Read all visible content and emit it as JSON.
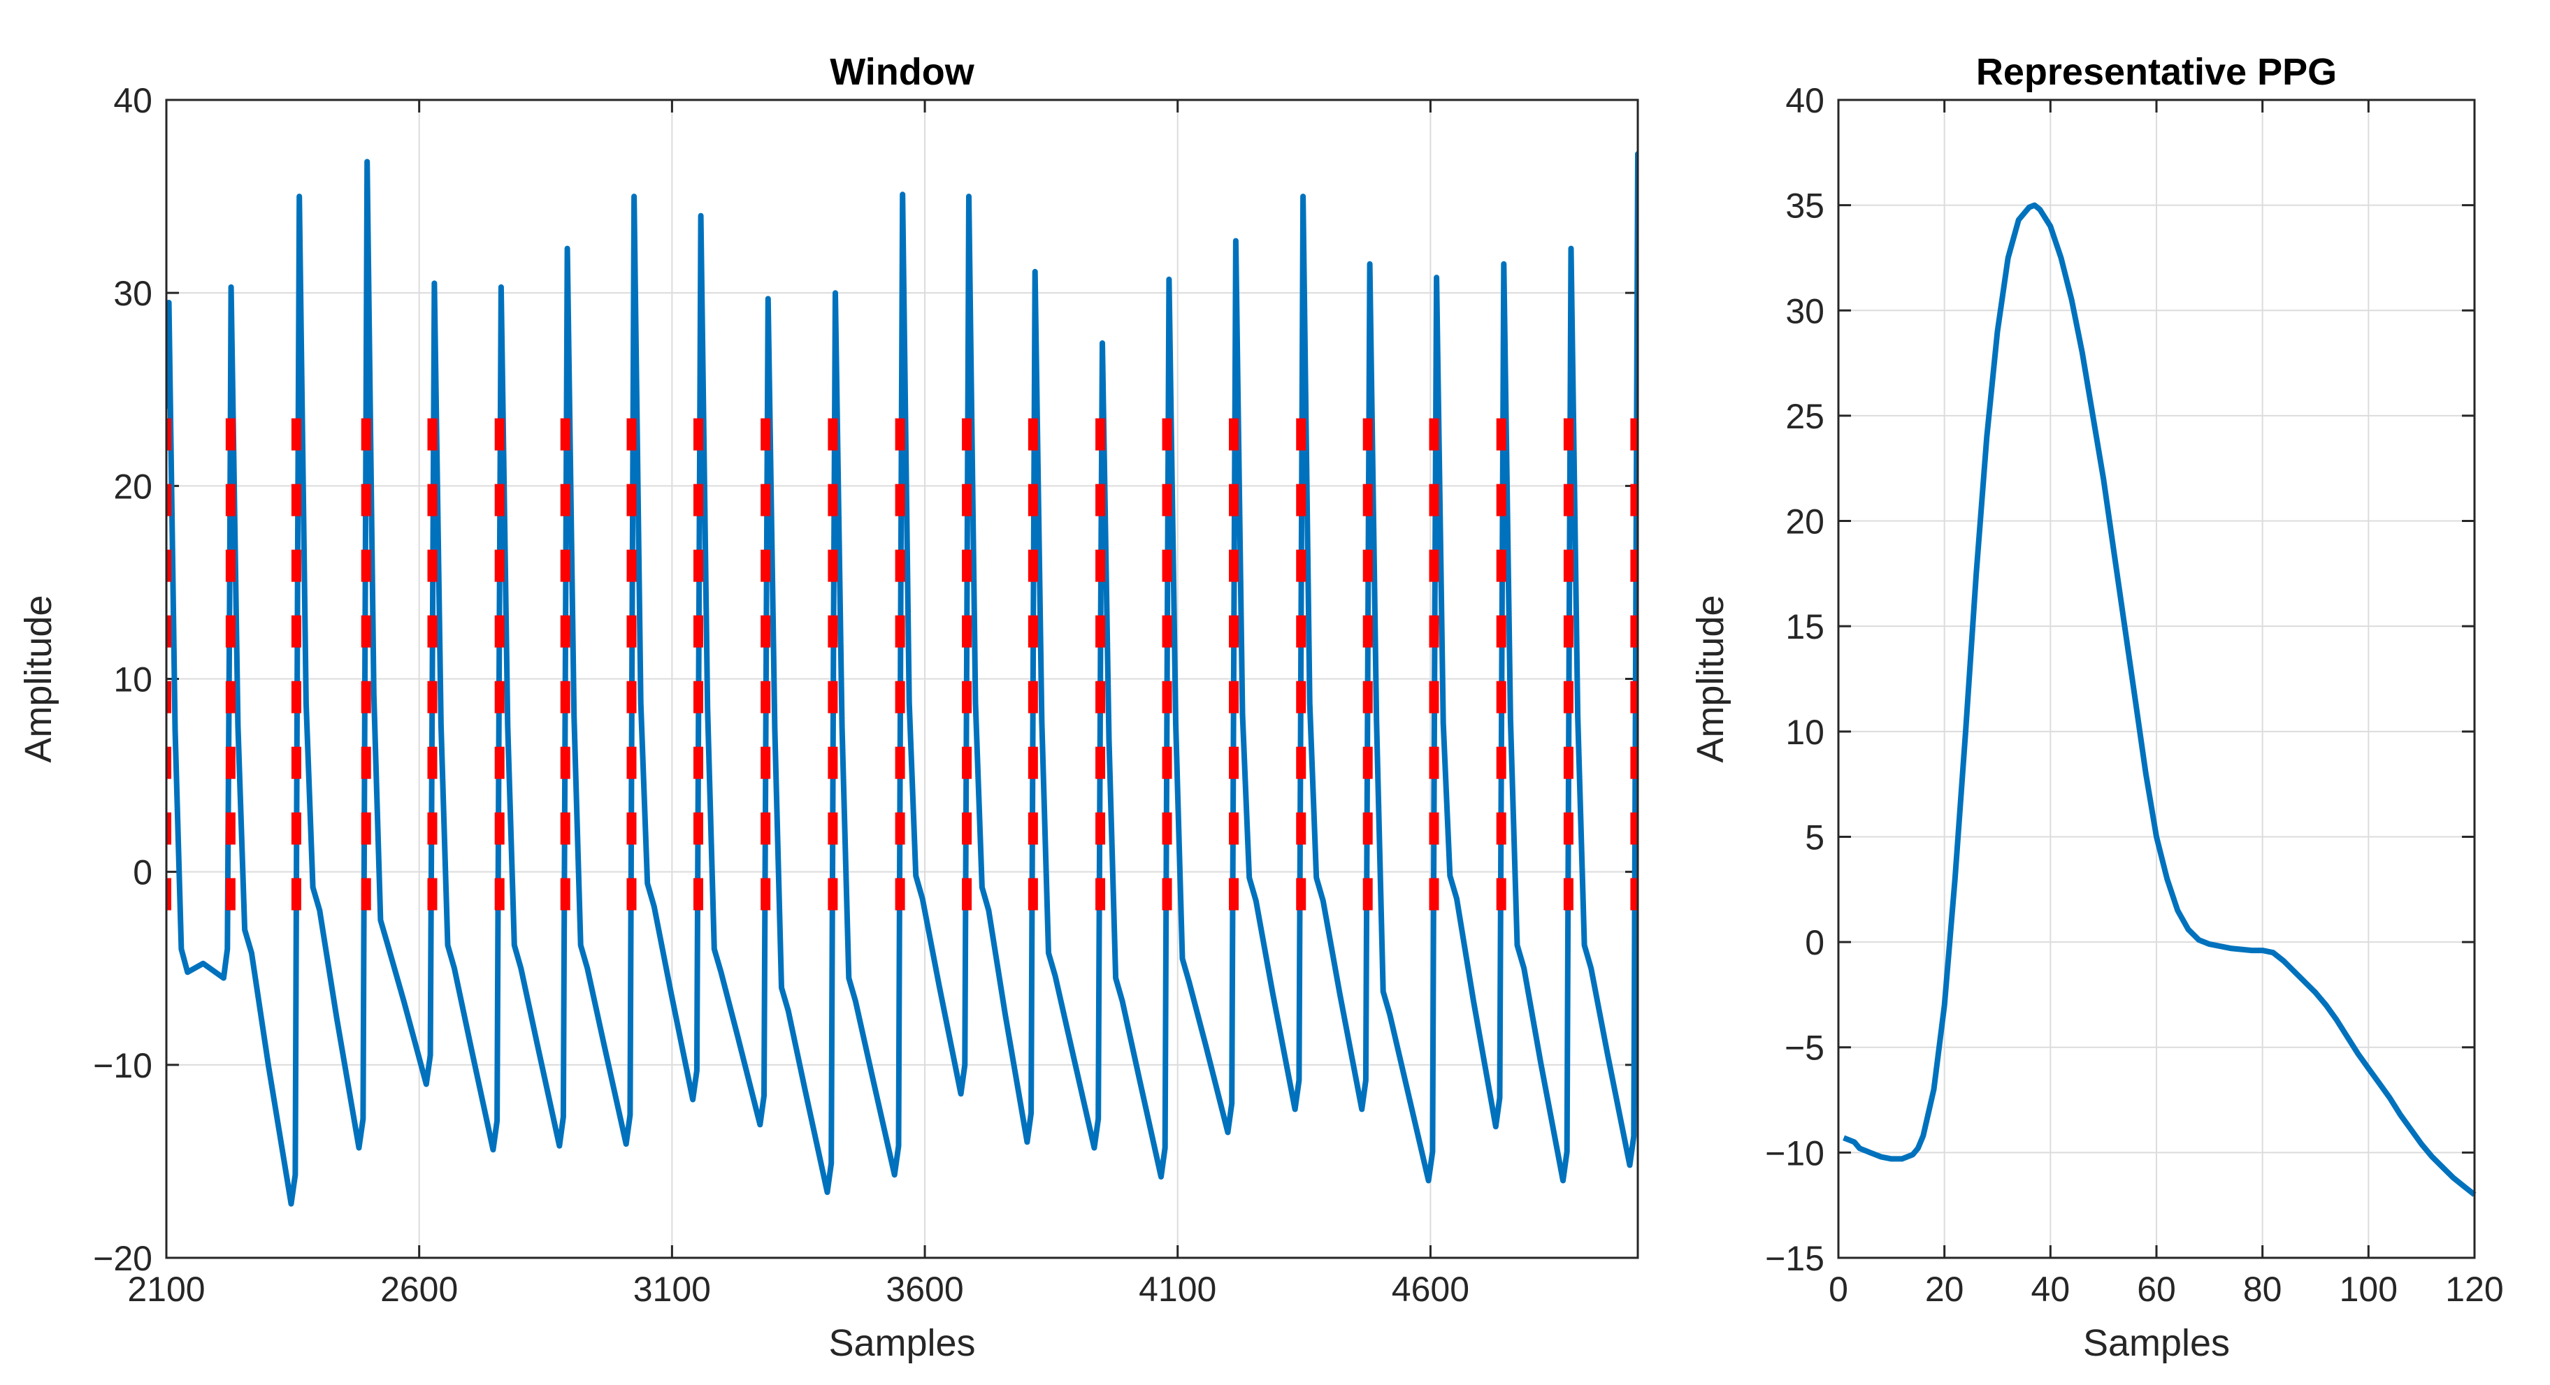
{
  "chart_data": [
    {
      "type": "line",
      "title": "Window",
      "xlabel": "Samples",
      "ylabel": "Amplitude",
      "xlim": [
        2100,
        5010
      ],
      "ylim": [
        -20,
        40
      ],
      "grid": true,
      "xticks": [
        2100,
        2600,
        3100,
        3600,
        4100,
        4600
      ],
      "yticks": [
        -20,
        -10,
        0,
        10,
        20,
        30,
        40
      ],
      "xtick_labels": [
        "2100",
        "2600",
        "3100",
        "3600",
        "4100",
        "4600"
      ],
      "ytick_labels": [
        "−20",
        "−10",
        "0",
        "10",
        "20",
        "30",
        "40"
      ],
      "series": [
        {
          "role": "signal",
          "color": "#0072BD",
          "beats": [
            {
              "x": 2105,
              "peak": 29.5,
              "valley": -5.5,
              "notch": -4.0
            },
            {
              "x": 2228,
              "peak": 30.3,
              "valley": -17.2,
              "notch": -3.0
            },
            {
              "x": 2363,
              "peak": 35.0,
              "valley": -14.3,
              "notch": -0.8
            },
            {
              "x": 2497,
              "peak": 36.8,
              "valley": -11.0,
              "notch": -2.5
            },
            {
              "x": 2630,
              "peak": 30.5,
              "valley": -14.4,
              "notch": -3.8
            },
            {
              "x": 2762,
              "peak": 30.3,
              "valley": -14.2,
              "notch": -3.8
            },
            {
              "x": 2893,
              "peak": 32.3,
              "valley": -14.1,
              "notch": -3.8
            },
            {
              "x": 3025,
              "peak": 35.0,
              "valley": -11.8,
              "notch": -0.6
            },
            {
              "x": 3157,
              "peak": 34.0,
              "valley": -13.1,
              "notch": -4.0
            },
            {
              "x": 3290,
              "peak": 29.7,
              "valley": -16.6,
              "notch": -6.0
            },
            {
              "x": 3423,
              "peak": 30.0,
              "valley": -15.7,
              "notch": -5.5
            },
            {
              "x": 3556,
              "peak": 35.1,
              "valley": -11.5,
              "notch": -0.2
            },
            {
              "x": 3687,
              "peak": 35.0,
              "valley": -14.0,
              "notch": -0.8
            },
            {
              "x": 3818,
              "peak": 31.1,
              "valley": -14.3,
              "notch": -4.2
            },
            {
              "x": 3951,
              "peak": 27.4,
              "valley": -15.8,
              "notch": -5.5
            },
            {
              "x": 4083,
              "peak": 30.7,
              "valley": -13.5,
              "notch": -4.5
            },
            {
              "x": 4215,
              "peak": 32.7,
              "valley": -12.3,
              "notch": -0.3
            },
            {
              "x": 4348,
              "peak": 35.0,
              "valley": -12.3,
              "notch": -0.3
            },
            {
              "x": 4480,
              "peak": 31.5,
              "valley": -16.0,
              "notch": -6.2
            },
            {
              "x": 4612,
              "peak": 30.8,
              "valley": -13.2,
              "notch": -0.2
            },
            {
              "x": 4745,
              "peak": 31.5,
              "valley": -16.0,
              "notch": -3.8
            },
            {
              "x": 4878,
              "peak": 32.3,
              "valley": -15.2,
              "notch": -3.8
            },
            {
              "x": 5010,
              "peak": 37.2,
              "valley": -14.8,
              "notch": 0.8
            }
          ]
        },
        {
          "role": "beat-onset-markers",
          "color": "#FF0000",
          "style": "dashed",
          "y_range": [
            -3.5,
            23.5
          ],
          "x": [
            2100,
            2227,
            2357,
            2495,
            2626,
            2759,
            2889,
            3020,
            3152,
            3285,
            3418,
            3551,
            3683,
            3814,
            3947,
            4079,
            4211,
            4344,
            4476,
            4607,
            4740,
            4873,
            5005
          ]
        }
      ]
    },
    {
      "type": "line",
      "title": "Representative PPG",
      "xlabel": "Samples",
      "ylabel": "Amplitude",
      "xlim": [
        0,
        120
      ],
      "ylim": [
        -15,
        40
      ],
      "grid": true,
      "xticks": [
        0,
        20,
        40,
        60,
        80,
        100,
        120
      ],
      "yticks": [
        -15,
        -10,
        -5,
        0,
        5,
        10,
        15,
        20,
        25,
        30,
        35,
        40
      ],
      "xtick_labels": [
        "0",
        "20",
        "40",
        "60",
        "80",
        "100",
        "120"
      ],
      "ytick_labels": [
        "−15",
        "−10",
        "−5",
        "0",
        "5",
        "10",
        "15",
        "20",
        "25",
        "30",
        "35",
        "40"
      ],
      "series": [
        {
          "role": "template",
          "color": "#0072BD",
          "x": [
            1,
            2,
            3,
            4,
            6,
            8,
            10,
            12,
            14,
            15,
            16,
            18,
            20,
            22,
            24,
            26,
            28,
            30,
            32,
            34,
            36,
            37,
            38,
            40,
            42,
            44,
            46,
            48,
            50,
            52,
            54,
            56,
            58,
            60,
            62,
            64,
            66,
            68,
            70,
            72,
            74,
            76,
            78,
            80,
            82,
            84,
            86,
            88,
            90,
            92,
            94,
            96,
            98,
            100,
            102,
            104,
            106,
            108,
            110,
            112,
            114,
            116,
            118,
            120
          ],
          "y": [
            -9.3,
            -9.4,
            -9.5,
            -9.8,
            -10.0,
            -10.2,
            -10.3,
            -10.3,
            -10.1,
            -9.8,
            -9.2,
            -7.0,
            -3.0,
            3.0,
            10.0,
            17.5,
            24.0,
            29.0,
            32.5,
            34.3,
            34.9,
            35.0,
            34.8,
            34.0,
            32.5,
            30.5,
            28.0,
            25.0,
            22.0,
            18.5,
            15.0,
            11.5,
            8.0,
            5.0,
            3.0,
            1.5,
            0.6,
            0.1,
            -0.1,
            -0.2,
            -0.3,
            -0.35,
            -0.4,
            -0.4,
            -0.5,
            -0.9,
            -1.4,
            -1.9,
            -2.4,
            -3.0,
            -3.7,
            -4.5,
            -5.3,
            -6.0,
            -6.7,
            -7.4,
            -8.2,
            -8.9,
            -9.6,
            -10.2,
            -10.7,
            -11.2,
            -11.6,
            -12.0
          ]
        }
      ]
    }
  ]
}
